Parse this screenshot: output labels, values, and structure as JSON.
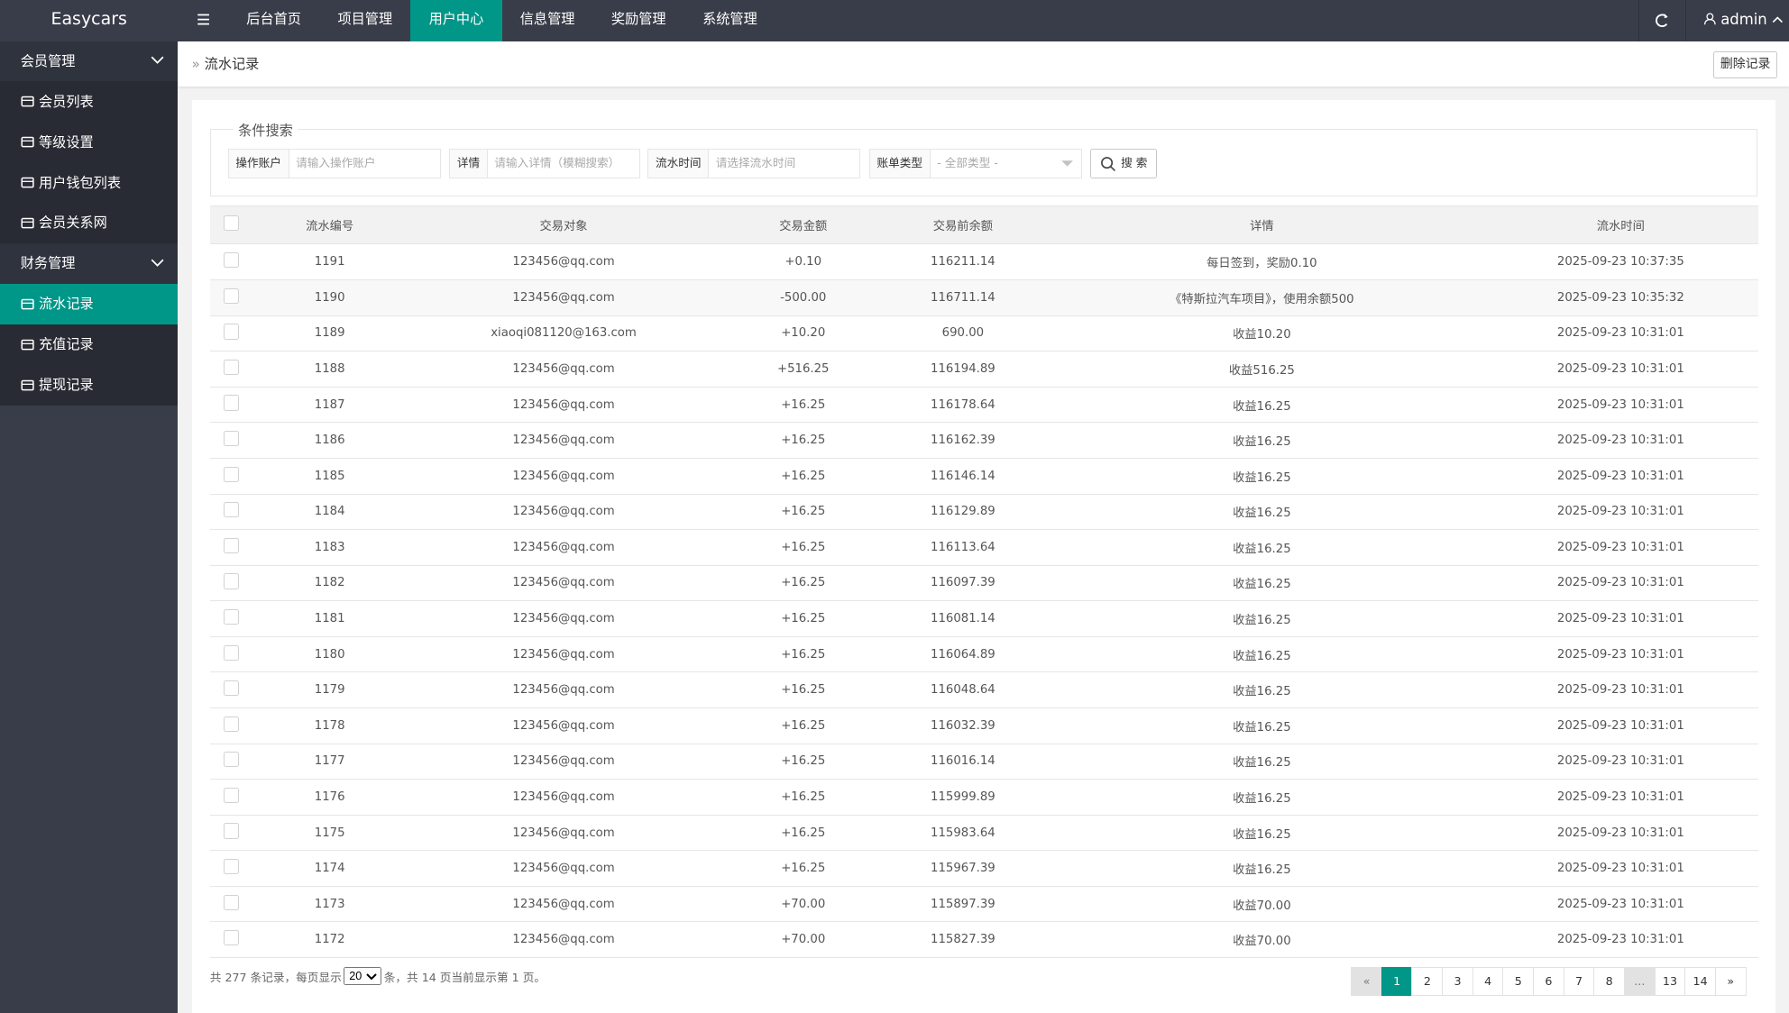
{
  "header": {
    "logo": "Easycars",
    "nav": [
      "后台首页",
      "项目管理",
      "用户中心",
      "信息管理",
      "奖励管理",
      "系统管理"
    ],
    "user": "admin"
  },
  "sidebar": {
    "groups": [
      {
        "title": "会员管理",
        "items": [
          "会员列表",
          "等级设置",
          "用户钱包列表",
          "会员关系网"
        ]
      },
      {
        "title": "财务管理",
        "items": [
          "流水记录",
          "充值记录",
          "提现记录"
        ]
      }
    ]
  },
  "breadcrumb": "流水记录",
  "delete_button": "删除记录",
  "search": {
    "legend": "条件搜索",
    "fields": [
      {
        "label": "操作账户",
        "placeholder": "请输入操作账户"
      },
      {
        "label": "详情",
        "placeholder": "请输入详情（模糊搜索）"
      },
      {
        "label": "流水时间",
        "placeholder": "请选择流水时间"
      },
      {
        "label": "账单类型",
        "placeholder": "- 全部类型 -"
      }
    ],
    "button": "搜 索"
  },
  "table": {
    "columns": [
      "流水编号",
      "交易对象",
      "交易金额",
      "交易前余额",
      "详情",
      "流水时间"
    ],
    "rows": [
      [
        "1191",
        "123456@qq.com",
        "+0.10",
        "116211.14",
        "每日签到，奖励0.10",
        "2025-09-23 10:37:35"
      ],
      [
        "1190",
        "123456@qq.com",
        "-500.00",
        "116711.14",
        "《特斯拉汽车项目》，使用余额500",
        "2025-09-23 10:35:32"
      ],
      [
        "1189",
        "xiaoqi081120@163.com",
        "+10.20",
        "690.00",
        "收益10.20",
        "2025-09-23 10:31:01"
      ],
      [
        "1188",
        "123456@qq.com",
        "+516.25",
        "116194.89",
        "收益516.25",
        "2025-09-23 10:31:01"
      ],
      [
        "1187",
        "123456@qq.com",
        "+16.25",
        "116178.64",
        "收益16.25",
        "2025-09-23 10:31:01"
      ],
      [
        "1186",
        "123456@qq.com",
        "+16.25",
        "116162.39",
        "收益16.25",
        "2025-09-23 10:31:01"
      ],
      [
        "1185",
        "123456@qq.com",
        "+16.25",
        "116146.14",
        "收益16.25",
        "2025-09-23 10:31:01"
      ],
      [
        "1184",
        "123456@qq.com",
        "+16.25",
        "116129.89",
        "收益16.25",
        "2025-09-23 10:31:01"
      ],
      [
        "1183",
        "123456@qq.com",
        "+16.25",
        "116113.64",
        "收益16.25",
        "2025-09-23 10:31:01"
      ],
      [
        "1182",
        "123456@qq.com",
        "+16.25",
        "116097.39",
        "收益16.25",
        "2025-09-23 10:31:01"
      ],
      [
        "1181",
        "123456@qq.com",
        "+16.25",
        "116081.14",
        "收益16.25",
        "2025-09-23 10:31:01"
      ],
      [
        "1180",
        "123456@qq.com",
        "+16.25",
        "116064.89",
        "收益16.25",
        "2025-09-23 10:31:01"
      ],
      [
        "1179",
        "123456@qq.com",
        "+16.25",
        "116048.64",
        "收益16.25",
        "2025-09-23 10:31:01"
      ],
      [
        "1178",
        "123456@qq.com",
        "+16.25",
        "116032.39",
        "收益16.25",
        "2025-09-23 10:31:01"
      ],
      [
        "1177",
        "123456@qq.com",
        "+16.25",
        "116016.14",
        "收益16.25",
        "2025-09-23 10:31:01"
      ],
      [
        "1176",
        "123456@qq.com",
        "+16.25",
        "115999.89",
        "收益16.25",
        "2025-09-23 10:31:01"
      ],
      [
        "1175",
        "123456@qq.com",
        "+16.25",
        "115983.64",
        "收益16.25",
        "2025-09-23 10:31:01"
      ],
      [
        "1174",
        "123456@qq.com",
        "+16.25",
        "115967.39",
        "收益16.25",
        "2025-09-23 10:31:01"
      ],
      [
        "1173",
        "123456@qq.com",
        "+70.00",
        "115897.39",
        "收益70.00",
        "2025-09-23 10:31:01"
      ],
      [
        "1172",
        "123456@qq.com",
        "+70.00",
        "115827.39",
        "收益70.00",
        "2025-09-23 10:31:01"
      ]
    ]
  },
  "footer": {
    "before": "共 277 条记录，每页显示",
    "page_size": "20",
    "after": "条，共 14 页当前显示第 1 页。"
  },
  "pagination": [
    "«",
    "1",
    "2",
    "3",
    "4",
    "5",
    "6",
    "7",
    "8",
    "...",
    "13",
    "14",
    "»"
  ]
}
